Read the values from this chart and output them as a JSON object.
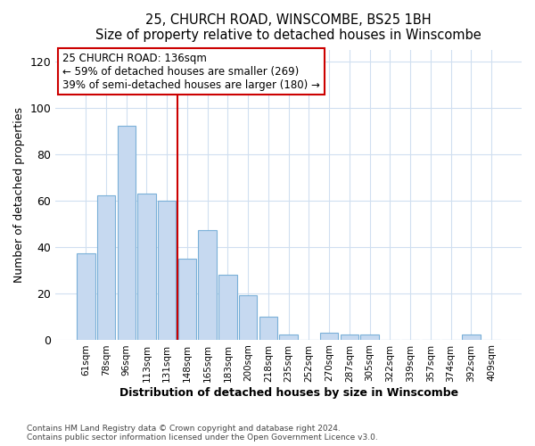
{
  "title1": "25, CHURCH ROAD, WINSCOMBE, BS25 1BH",
  "title2": "Size of property relative to detached houses in Winscombe",
  "xlabel": "Distribution of detached houses by size in Winscombe",
  "ylabel": "Number of detached properties",
  "categories": [
    "61sqm",
    "78sqm",
    "96sqm",
    "113sqm",
    "131sqm",
    "148sqm",
    "165sqm",
    "183sqm",
    "200sqm",
    "218sqm",
    "235sqm",
    "252sqm",
    "270sqm",
    "287sqm",
    "305sqm",
    "322sqm",
    "339sqm",
    "357sqm",
    "374sqm",
    "392sqm",
    "409sqm"
  ],
  "values": [
    37,
    62,
    92,
    63,
    60,
    35,
    47,
    28,
    19,
    10,
    2,
    0,
    3,
    2,
    2,
    0,
    0,
    0,
    0,
    2,
    0
  ],
  "bar_color": "#c6d9f0",
  "bar_edge_color": "#7ab0d8",
  "vline_x": 4.5,
  "vline_color": "#cc0000",
  "annotation_text_line1": "25 CHURCH ROAD: 136sqm",
  "annotation_text_line2": "← 59% of detached houses are smaller (269)",
  "annotation_text_line3": "39% of semi-detached houses are larger (180) →",
  "annotation_box_edge_color": "#cc0000",
  "ylim": [
    0,
    125
  ],
  "yticks": [
    0,
    20,
    40,
    60,
    80,
    100,
    120
  ],
  "footer1": "Contains HM Land Registry data © Crown copyright and database right 2024.",
  "footer2": "Contains public sector information licensed under the Open Government Licence v3.0.",
  "bg_color": "#ffffff",
  "plot_bg_color": "#ffffff",
  "grid_color": "#d0dff0"
}
